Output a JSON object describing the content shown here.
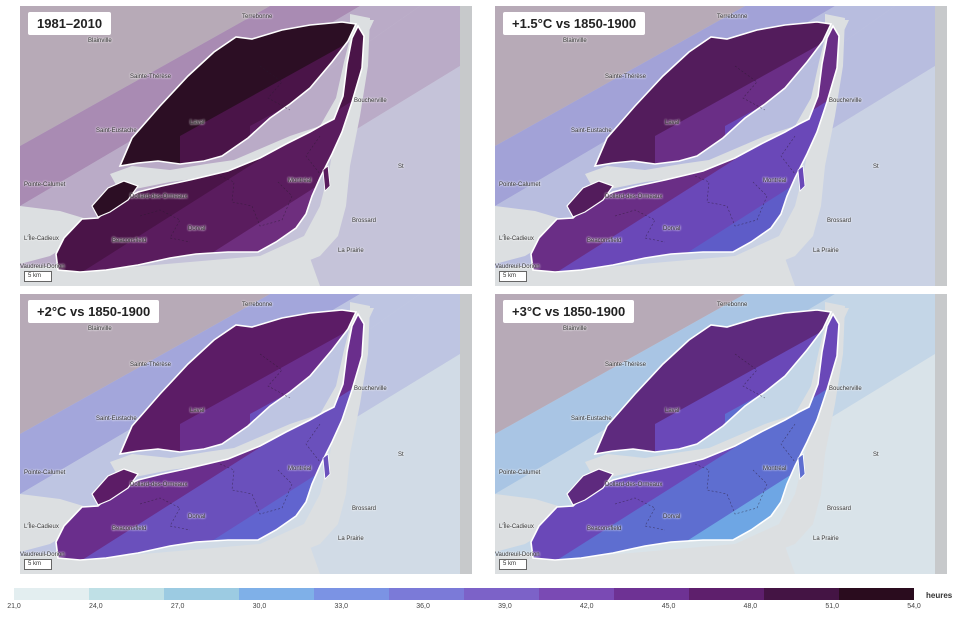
{
  "panels": [
    {
      "title": "1981–2010",
      "scale": "5 km",
      "palette": [
        "#8a6e86",
        "#2c0e24",
        "#4a1448",
        "#5a1c5e",
        "#6e2e7e",
        "#9070a8",
        "#a8a0cc"
      ]
    },
    {
      "title": "+1.5°C vs 1850-1900",
      "scale": "5 km",
      "palette": [
        "#8a6e86",
        "#531c5c",
        "#6a2e86",
        "#6a48b8",
        "#5e5cc8",
        "#8c94d8",
        "#b0c0e4"
      ]
    },
    {
      "title": "+2°C vs 1850-1900",
      "scale": "5 km",
      "palette": [
        "#8a6e86",
        "#5c1c66",
        "#6a2e8c",
        "#6a50bc",
        "#6164cf",
        "#99a6de",
        "#c0d4e8"
      ]
    },
    {
      "title": "+3°C vs 1850-1900",
      "scale": "5 km",
      "palette": [
        "#8a6e86",
        "#5e2a7e",
        "#6a48b8",
        "#5e6ed0",
        "#6ea6e4",
        "#a4c8ea",
        "#cfe3ec"
      ]
    }
  ],
  "places": {
    "terrebonne": "Terrebonne",
    "blainville": "Blainville",
    "sainte_therese": "Sainte-Thérèse",
    "laval": "Laval",
    "saint_eustache": "Saint-Eustache",
    "boucherville": "Boucherville",
    "pointe_calumet": "Pointe-Calumet",
    "dollard": "Dollard-des-Ormeaux",
    "montreal": "Montréal",
    "brossard": "Brossard",
    "ile_cadieux": "L'Île-Cadieux",
    "beaconsfield": "Beaconsfield",
    "dorval": "Dorval",
    "la_prairie": "La Prairie",
    "vaudreuil": "Vaudreuil-Dorion",
    "st": "St"
  },
  "legend": {
    "colors": [
      "#e3eef0",
      "#bfe0e6",
      "#9ccbe2",
      "#7fb0e8",
      "#7b93e4",
      "#7b7ad8",
      "#7c62c8",
      "#7a4ab4",
      "#6e3294",
      "#5e1f6c",
      "#441444",
      "#2a0c1e"
    ],
    "ticks": [
      "21,0",
      "24,0",
      "27,0",
      "30,0",
      "33,0",
      "36,0",
      "39,0",
      "42,0",
      "45,0",
      "48,0",
      "51,0",
      "54,0"
    ],
    "unit": "heures"
  }
}
